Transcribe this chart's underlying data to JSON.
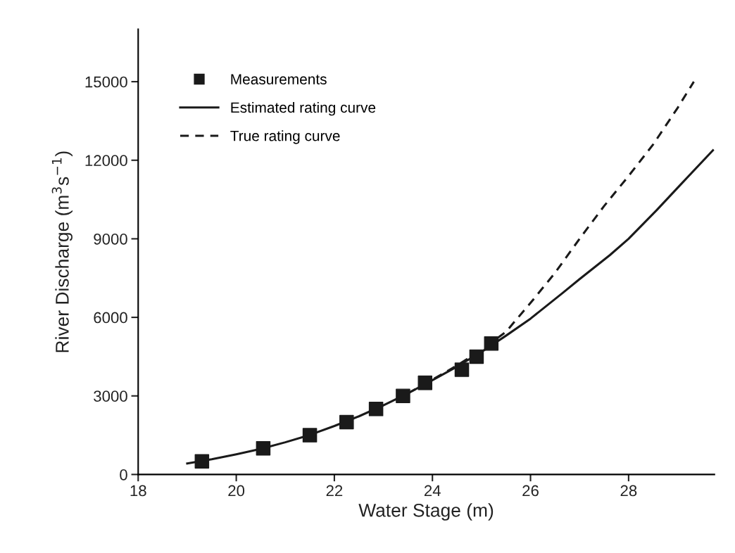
{
  "chart_data": {
    "type": "line",
    "xlabel": "Water Stage (m)",
    "ylabel": "River Discharge (m$^{3}$s$^{−1}$)",
    "xlim": [
      18,
      29.75
    ],
    "ylim": [
      0,
      17000
    ],
    "xticks": [
      18,
      20,
      22,
      24,
      26,
      28
    ],
    "yticks": [
      0,
      3000,
      6000,
      9000,
      12000,
      15000
    ],
    "grid": false,
    "legend": "top left",
    "series": [
      {
        "name": "Measurements",
        "type": "scatter",
        "marker": "square",
        "color": "#1a1a1a",
        "x": [
          19.3,
          20.55,
          21.5,
          22.25,
          22.85,
          23.4,
          23.85,
          24.6,
          24.9,
          25.2
        ],
        "values": [
          500,
          1000,
          1500,
          2000,
          2500,
          3000,
          3500,
          4000,
          4500,
          5000
        ]
      },
      {
        "name": "Estimated rating curve",
        "line_style": "solid",
        "color": "#1a1a1a",
        "x": [
          19.0,
          19.5,
          20.0,
          20.5,
          21.0,
          21.5,
          22.0,
          22.5,
          23.0,
          23.5,
          24.0,
          24.5,
          25.0,
          25.5,
          26.0,
          26.66,
          27.0,
          27.62,
          28.0,
          28.57,
          29.0,
          29.72
        ],
        "values": [
          420,
          580,
          770,
          980,
          1230,
          1510,
          1850,
          2220,
          2640,
          3100,
          3600,
          4120,
          4680,
          5300,
          5950,
          6940,
          7460,
          8380,
          9000,
          10090,
          10950,
          12380
        ]
      },
      {
        "name": "True rating curve",
        "line_style": "dashed",
        "color": "#1a1a1a",
        "x": [
          23.5,
          24.0,
          24.5,
          25.0,
          25.5,
          26.0,
          26.5,
          27.0,
          27.5,
          28.0,
          28.5,
          29.0,
          29.33
        ],
        "values": [
          3100,
          3620,
          4160,
          4760,
          5450,
          6550,
          7700,
          9000,
          10250,
          11400,
          12600,
          14000,
          15000
        ]
      }
    ]
  }
}
